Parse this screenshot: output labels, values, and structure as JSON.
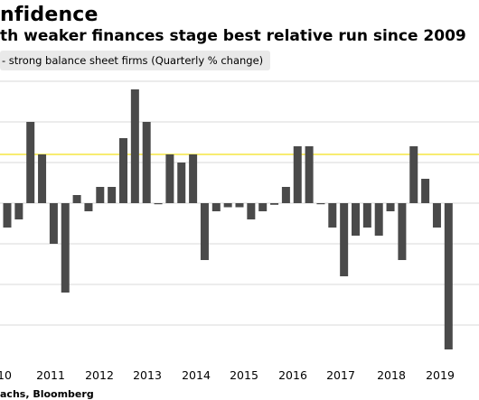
{
  "header": {
    "title": "nfidence",
    "subtitle": "th weaker finances stage best relative run since 2009"
  },
  "legend_label": "- strong balance sheet firms (Quarterly % change)",
  "source": "achs, Bloomberg",
  "colors": {
    "bar": "#4a4a4a",
    "highlight_line": "#f5e642",
    "grid": "#d9d9d9"
  },
  "chart_data": {
    "type": "bar",
    "legend": "- strong balance sheet firms (Quarterly % change)",
    "x_tick_labels": [
      "10",
      "2011",
      "2012",
      "2013",
      "2014",
      "2015",
      "2016",
      "2017",
      "2018",
      "2019"
    ],
    "series": [
      {
        "values": [
          -3,
          -2,
          10,
          6,
          -5,
          -11,
          1,
          -1,
          2,
          2,
          8,
          14,
          10,
          0,
          6,
          5,
          6,
          -7,
          -1,
          -0.5,
          -0.5,
          -2,
          -1,
          -0.2,
          2,
          7,
          7,
          0,
          -3,
          -9,
          -4,
          -3,
          -4,
          -1,
          -7,
          7,
          3,
          -3,
          -18
        ]
      }
    ],
    "reference_line": 6,
    "ylim": [
      -20,
      16
    ],
    "grid": true
  }
}
